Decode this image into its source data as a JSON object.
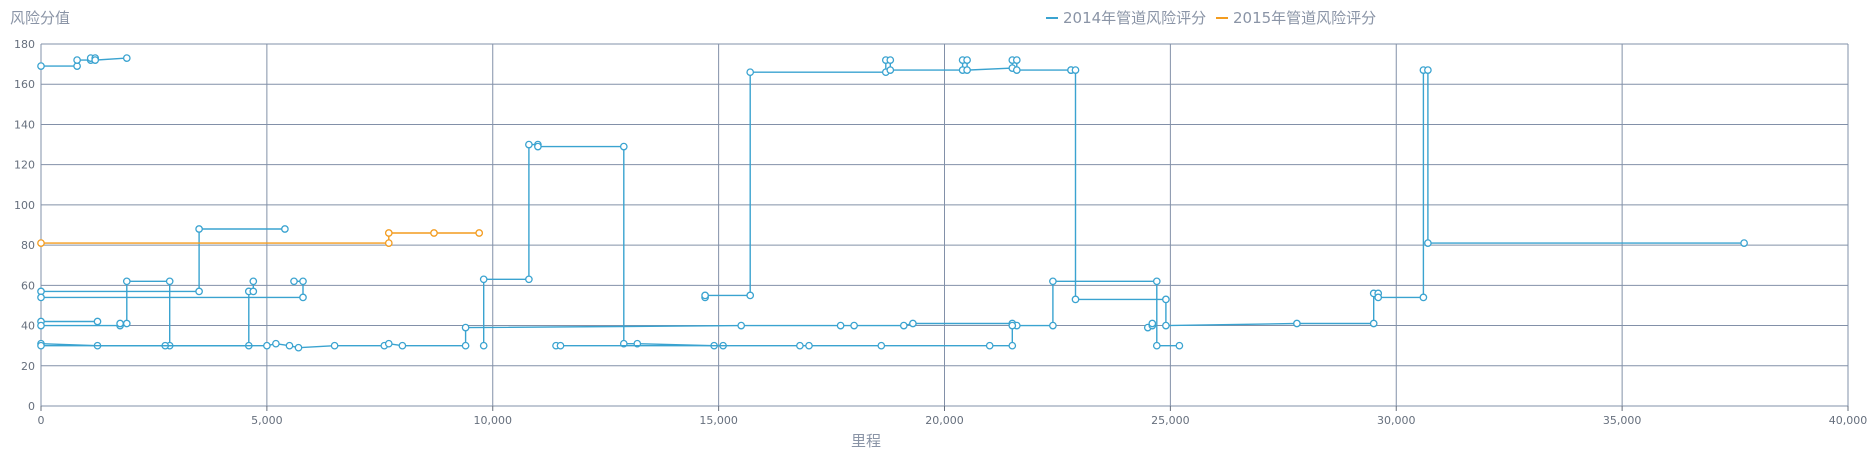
{
  "chart_data": {
    "type": "line",
    "step": true,
    "ylabel": "风险分值",
    "xlabel": "里程",
    "xlim": [
      0,
      40000
    ],
    "ylim": [
      0,
      180
    ],
    "x_ticks": [
      0,
      5000,
      10000,
      15000,
      20000,
      25000,
      30000,
      35000,
      40000
    ],
    "x_tick_labels": [
      "0",
      "5,000",
      "10,000",
      "15,000",
      "20,000",
      "25,000",
      "30,000",
      "35,000",
      "40,000"
    ],
    "y_ticks": [
      0,
      20,
      40,
      60,
      80,
      100,
      120,
      140,
      160,
      180
    ],
    "y_tick_labels": [
      "0",
      "20",
      "40",
      "60",
      "80",
      "100",
      "120",
      "140",
      "160",
      "180"
    ],
    "grid": true,
    "legend_position": "top-center",
    "series": [
      {
        "name": "2014年管道风险评分",
        "color": "#3aa3d0",
        "segments": [
          [
            [
              0,
              169
            ],
            [
              800,
              169
            ],
            [
              800,
              172
            ],
            [
              1100,
              172
            ],
            [
              1100,
              173
            ],
            [
              1200,
              173
            ],
            [
              1200,
              172
            ],
            [
              1900,
              173
            ]
          ],
          [
            [
              0,
              57
            ],
            [
              3500,
              57
            ],
            [
              3500,
              88
            ],
            [
              5400,
              88
            ]
          ],
          [
            [
              0,
              54
            ],
            [
              5800,
              54
            ],
            [
              5800,
              62
            ],
            [
              5600,
              62
            ]
          ],
          [
            [
              0,
              42
            ],
            [
              1250,
              42
            ]
          ],
          [
            [
              0,
              40
            ],
            [
              1750,
              40
            ],
            [
              1750,
              41
            ],
            [
              1900,
              41
            ],
            [
              1900,
              62
            ],
            [
              2850,
              62
            ],
            [
              2850,
              30
            ],
            [
              2750,
              30
            ]
          ],
          [
            [
              0,
              31
            ],
            [
              1250,
              30
            ],
            [
              4600,
              30
            ],
            [
              4600,
              57
            ],
            [
              4700,
              57
            ],
            [
              4700,
              62
            ]
          ],
          [
            [
              0,
              30
            ],
            [
              5000,
              30
            ],
            [
              5200,
              31
            ],
            [
              5500,
              30
            ],
            [
              5700,
              29
            ],
            [
              6500,
              30
            ],
            [
              7600,
              30
            ],
            [
              7700,
              31
            ],
            [
              8000,
              30
            ],
            [
              9400,
              30
            ],
            [
              9400,
              39
            ],
            [
              15500,
              40
            ],
            [
              17700,
              40
            ],
            [
              18000,
              40
            ],
            [
              19100,
              40
            ],
            [
              19300,
              41
            ],
            [
              21500,
              41
            ],
            [
              21600,
              40
            ],
            [
              22400,
              40
            ],
            [
              22400,
              62
            ],
            [
              24700,
              62
            ],
            [
              24700,
              30
            ],
            [
              25200,
              30
            ]
          ],
          [
            [
              9800,
              30
            ],
            [
              9800,
              63
            ],
            [
              10800,
              63
            ],
            [
              10800,
              130
            ],
            [
              11000,
              130
            ],
            [
              11000,
              129
            ],
            [
              12900,
              129
            ],
            [
              12900,
              31
            ],
            [
              13200,
              31
            ],
            [
              14900,
              30
            ],
            [
              15100,
              30
            ]
          ],
          [
            [
              11400,
              30
            ],
            [
              11500,
              30
            ],
            [
              16800,
              30
            ],
            [
              17000,
              30
            ],
            [
              18600,
              30
            ],
            [
              21000,
              30
            ],
            [
              21500,
              30
            ],
            [
              21500,
              40
            ]
          ],
          [
            [
              14700,
              54
            ],
            [
              14700,
              55
            ],
            [
              15700,
              55
            ],
            [
              15700,
              166
            ],
            [
              18700,
              166
            ],
            [
              18700,
              172
            ],
            [
              18800,
              172
            ],
            [
              18800,
              167
            ],
            [
              20400,
              167
            ],
            [
              20400,
              172
            ],
            [
              20500,
              172
            ],
            [
              20500,
              167
            ],
            [
              21500,
              168
            ],
            [
              21500,
              172
            ],
            [
              21600,
              172
            ],
            [
              21600,
              167
            ],
            [
              22800,
              167
            ],
            [
              22800,
              167
            ],
            [
              22900,
              167
            ],
            [
              22900,
              53
            ],
            [
              24900,
              53
            ],
            [
              24900,
              40
            ],
            [
              27800,
              41
            ],
            [
              29500,
              41
            ],
            [
              29500,
              56
            ],
            [
              29600,
              56
            ],
            [
              29600,
              54
            ],
            [
              30600,
              54
            ],
            [
              30600,
              167
            ],
            [
              30700,
              167
            ],
            [
              30700,
              81
            ],
            [
              37700,
              81
            ]
          ],
          [
            [
              24500,
              39
            ],
            [
              24600,
              40
            ],
            [
              24600,
              41
            ]
          ]
        ]
      },
      {
        "name": "2015年管道风险评分",
        "color": "#f39c1f",
        "segments": [
          [
            [
              0,
              81
            ],
            [
              7700,
              81
            ],
            [
              7700,
              86
            ],
            [
              8700,
              86
            ],
            [
              9700,
              86
            ]
          ]
        ]
      }
    ]
  }
}
